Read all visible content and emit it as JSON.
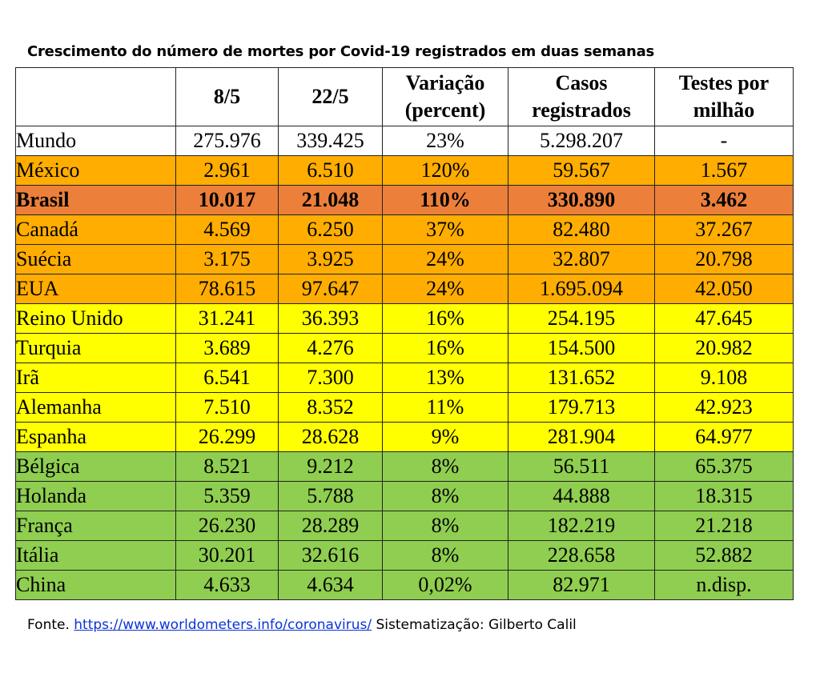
{
  "title": "Crescimento do número de mortes por Covid-19 registrados em duas semanas",
  "table": {
    "headers": [
      "",
      "8/5",
      "22/5",
      "Variação (percent)",
      "Casos registrados",
      "Testes por milhão"
    ],
    "rows": [
      {
        "country": "Mundo",
        "d85": "275.976",
        "d225": "339.425",
        "var": "23%",
        "casos": "5.298.207",
        "testes": "-",
        "color": "#ffffff"
      },
      {
        "country": "México",
        "d85": "2.961",
        "d225": "6.510",
        "var": "120%",
        "casos": "59.567",
        "testes": "1.567",
        "color": "#ffad00"
      },
      {
        "country": "Brasil",
        "d85": "10.017",
        "d225": "21.048",
        "var": "110%",
        "casos": "330.890",
        "testes": "3.462",
        "color": "#ec7f3a"
      },
      {
        "country": "Canadá",
        "d85": "4.569",
        "d225": "6.250",
        "var": "37%",
        "casos": "82.480",
        "testes": "37.267",
        "color": "#ffad00"
      },
      {
        "country": "Suécia",
        "d85": "3.175",
        "d225": "3.925",
        "var": "24%",
        "casos": "32.807",
        "testes": "20.798",
        "color": "#ffad00"
      },
      {
        "country": "EUA",
        "d85": "78.615",
        "d225": "97.647",
        "var": "24%",
        "casos": "1.695.094",
        "testes": "42.050",
        "color": "#ffad00"
      },
      {
        "country": "Reino Unido",
        "d85": "31.241",
        "d225": "36.393",
        "var": "16%",
        "casos": "254.195",
        "testes": "47.645",
        "color": "#ffff00"
      },
      {
        "country": "Turquia",
        "d85": "3.689",
        "d225": "4.276",
        "var": "16%",
        "casos": "154.500",
        "testes": "20.982",
        "color": "#ffff00"
      },
      {
        "country": "Irã",
        "d85": "6.541",
        "d225": "7.300",
        "var": "13%",
        "casos": "131.652",
        "testes": "9.108",
        "color": "#ffff00"
      },
      {
        "country": "Alemanha",
        "d85": "7.510",
        "d225": "8.352",
        "var": "11%",
        "casos": "179.713",
        "testes": "42.923",
        "color": "#ffff00"
      },
      {
        "country": "Espanha",
        "d85": "26.299",
        "d225": "28.628",
        "var": "9%",
        "casos": "281.904",
        "testes": "64.977",
        "color": "#ffff00"
      },
      {
        "country": "Bélgica",
        "d85": "8.521",
        "d225": "9.212",
        "var": "8%",
        "casos": "56.511",
        "testes": "65.375",
        "color": "#8fce50"
      },
      {
        "country": "Holanda",
        "d85": "5.359",
        "d225": "5.788",
        "var": "8%",
        "casos": "44.888",
        "testes": "18.315",
        "color": "#8fce50"
      },
      {
        "country": "França",
        "d85": "26.230",
        "d225": "28.289",
        "var": "8%",
        "casos": "182.219",
        "testes": "21.218",
        "color": "#8fce50"
      },
      {
        "country": "Itália",
        "d85": "30.201",
        "d225": "32.616",
        "var": "8%",
        "casos": "228.658",
        "testes": "52.882",
        "color": "#8fce50"
      },
      {
        "country": "China",
        "d85": "4.633",
        "d225": "4.634",
        "var": "0,02%",
        "casos": "82.971",
        "testes": "n.disp.",
        "color": "#8fce50"
      }
    ]
  },
  "source": {
    "prefix": "Fonte. ",
    "link": "https://www.worldometers.info/coronavirus/",
    "suffix": " Sistematização: Gilberto Calil"
  }
}
